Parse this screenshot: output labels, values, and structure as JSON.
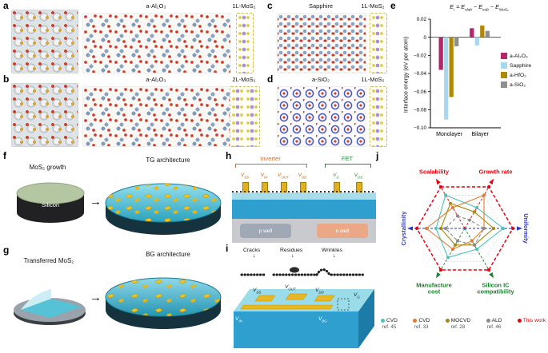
{
  "panels": {
    "a": {
      "label": "a",
      "substrate": "a-Al₂O₃",
      "layer": "1L-MoS₂"
    },
    "b": {
      "label": "b",
      "substrate": "a-Al₂O₃",
      "layer": "2L-MoS₂"
    },
    "c": {
      "label": "c",
      "substrate": "Sapphire",
      "layer": "1L-MoS₂"
    },
    "d": {
      "label": "d",
      "substrate": "a-SiO₂",
      "layer": "1L-MoS₂"
    },
    "e": {
      "label": "e"
    },
    "f": {
      "label": "f",
      "caption": "MoS₂ growth",
      "disk": "Silicon",
      "arch": "TG architecture"
    },
    "g": {
      "label": "g",
      "caption": "Transferred MoS₂",
      "arch": "BG architecture"
    },
    "h": {
      "label": "h",
      "inverter": "Inverter",
      "fet": "FET",
      "terminals": [
        "V_SS",
        "V_IN",
        "V_OUT",
        "V_DD"
      ],
      "fet_terminals": [
        "V_G",
        "V_DS"
      ],
      "p_well": "p well",
      "n_well": "n well"
    },
    "i": {
      "label": "i",
      "defects": [
        "Cracks",
        "Residues",
        "Wrinkles"
      ],
      "pads_top": [
        "V_SS",
        "V_OUT",
        "V_DD"
      ],
      "pads_other": [
        "V_IN",
        "V_BG",
        "V_G"
      ]
    },
    "j": {
      "label": "j"
    }
  },
  "chart_data": [
    {
      "id": "interface-energy",
      "type": "bar",
      "title": "E_i = E_slab − E_sub − E_MoS₂",
      "ylabel": "Interface energy (eV per atom)",
      "ylim": [
        -0.1,
        0.02
      ],
      "yticks": [
        0.02,
        0,
        -0.02,
        -0.04,
        -0.06,
        -0.08,
        -0.1
      ],
      "categories": [
        "Monolayer",
        "Bilayer"
      ],
      "series": [
        {
          "name": "a-Al₂O₃",
          "color": "#b4256b",
          "values": [
            -0.036,
            0.01
          ]
        },
        {
          "name": "Sapphire",
          "color": "#a8d8f0",
          "values": [
            -0.091,
            -0.009
          ]
        },
        {
          "name": "a-HfO₂",
          "color": "#b08904",
          "values": [
            -0.066,
            0.013
          ]
        },
        {
          "name": "a-SiO₂",
          "color": "#8f8f8f",
          "values": [
            -0.01,
            0.007
          ]
        }
      ],
      "legend_position": "right",
      "grid": false
    },
    {
      "id": "method-comparison-radar",
      "type": "radar",
      "max": 5,
      "axes": [
        {
          "label": "Scalability",
          "color": "#e8000d",
          "angle": 120
        },
        {
          "label": "Growth rate",
          "color": "#e8000d",
          "angle": 60
        },
        {
          "label": "Uniformity",
          "color": "#2f36c8",
          "angle": 0
        },
        {
          "label": "Silicon IC compatibility",
          "color": "#1e7d32",
          "angle": -60
        },
        {
          "label": "Manufacture cost",
          "color": "#1e7d32",
          "angle": -120
        },
        {
          "label": "Crystallinity",
          "color": "#2f36c8",
          "angle": 180
        }
      ],
      "series": [
        {
          "name": "CVD",
          "ref": "ref. 45",
          "color": "#49c2b9",
          "dash": false,
          "values": [
            4,
            2.5,
            4,
            2.5,
            3.5,
            3
          ]
        },
        {
          "name": "CVD",
          "ref": "ref. 33",
          "color": "#e07b2e",
          "dash": false,
          "values": [
            2.5,
            4,
            2,
            1.5,
            2.5,
            4
          ]
        },
        {
          "name": "MOCVD",
          "ref": "ref. 28",
          "color": "#a8860b",
          "dash": false,
          "values": [
            3,
            2,
            3,
            2,
            2,
            2.5
          ]
        },
        {
          "name": "ALD",
          "ref": "ref. 46",
          "color": "#8a8a8a",
          "dash": true,
          "values": [
            1.5,
            1,
            2,
            2,
            1.5,
            2
          ]
        },
        {
          "name": "This work",
          "ref": "",
          "color": "#e8000d",
          "dash": true,
          "values": [
            5,
            5,
            5,
            5,
            5,
            5
          ]
        }
      ]
    }
  ]
}
